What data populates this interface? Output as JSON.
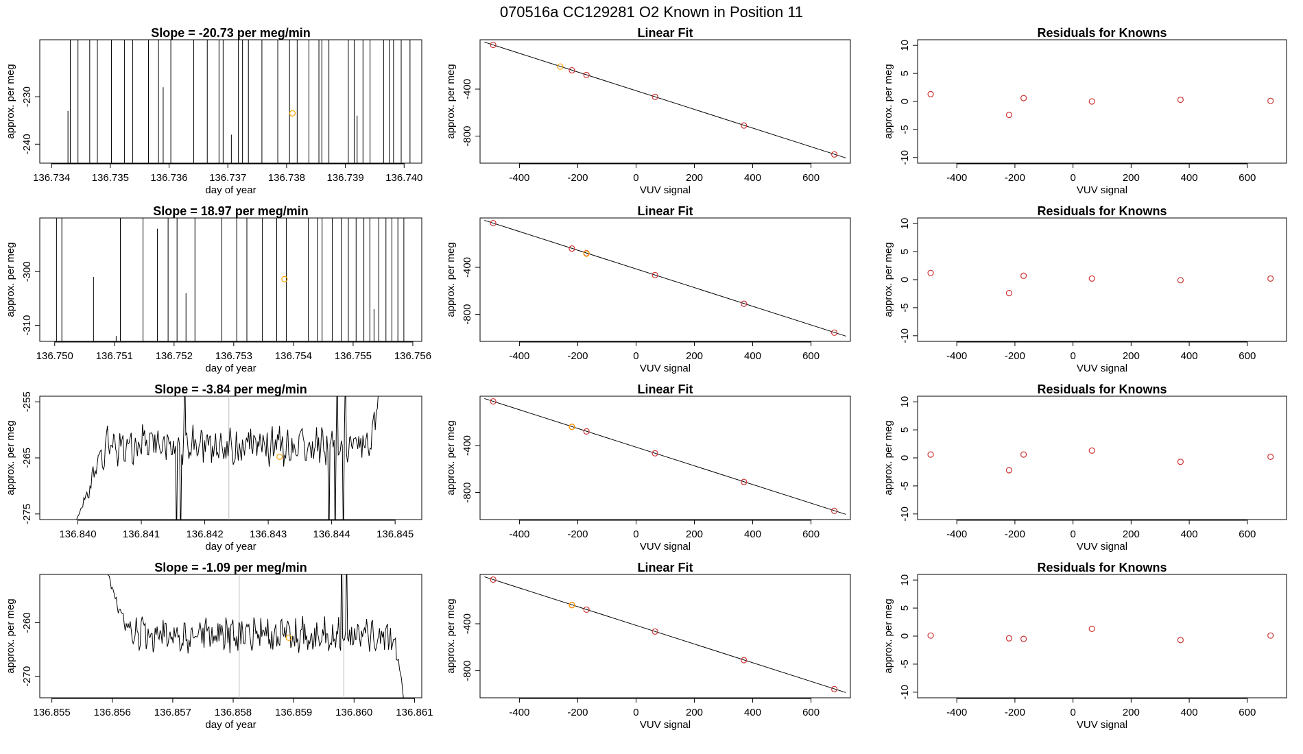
{
  "figure": {
    "title": "070516a      CC129281    O2 Known in Position  11"
  },
  "chart_data": [
    {
      "type": "line",
      "row": 1,
      "title": "Slope =  -20.73  per meg/min",
      "xlabel": "day of year",
      "ylabel": "approx. per meg",
      "xlim": [
        136.7338,
        136.7403
      ],
      "ylim": [
        -244,
        -218
      ],
      "xticks": [
        136.734,
        136.735,
        136.736,
        136.737,
        136.738,
        136.739,
        136.74
      ],
      "xtick_labels": [
        "136.734",
        "136.735",
        "136.736",
        "136.737",
        "136.738",
        "136.739",
        "136.740"
      ],
      "yticks": [
        -240,
        -230
      ],
      "ytick_labels": [
        "-240",
        "-230"
      ],
      "series": [
        {
          "name": "signal",
          "color": "#000000",
          "trace": "spike",
          "start": [
            136.73432,
            -244
          ],
          "spikes": [
            136.73432,
            136.73445,
            136.73465,
            136.73478,
            136.73502,
            136.73524,
            136.73538,
            136.73565,
            136.73582,
            136.73603,
            136.73642,
            136.73665,
            136.73685,
            136.73692,
            136.73718,
            136.73725,
            136.73735,
            136.73758,
            136.73785,
            136.73805,
            136.73818,
            136.73838,
            136.73855,
            136.7386,
            136.73872,
            136.73905,
            136.73915,
            136.7393,
            136.73942,
            136.73965,
            136.73975,
            136.73982,
            136.73995,
            136.7401
          ],
          "partial": [
            {
              "x": 136.73428,
              "y": -233
            },
            {
              "x": 136.7359,
              "y": -228
            },
            {
              "x": 136.73706,
              "y": -238
            },
            {
              "x": 136.7392,
              "y": -234
            }
          ]
        }
      ],
      "marker": {
        "x": 136.7381,
        "y": -233.5,
        "color": "#FFA500"
      }
    },
    {
      "type": "scatter",
      "row": 1,
      "title": "Linear Fit",
      "xlabel": "VUV signal",
      "ylabel": "approx. per meg",
      "xlim": [
        -535,
        735
      ],
      "ylim": [
        -1030,
        20
      ],
      "xticks": [
        -400,
        -200,
        0,
        200,
        400,
        600
      ],
      "xtick_labels": [
        "-400",
        "-200",
        "0",
        "200",
        "400",
        "600"
      ],
      "yticks": [
        -800,
        -400
      ],
      "ytick_labels": [
        "-800",
        "-400"
      ],
      "fit_line": {
        "x": [
          -520,
          720
        ],
        "y": [
          0,
          -986
        ]
      },
      "points": {
        "x": [
          -490,
          -220,
          -170,
          65,
          370,
          680
        ],
        "y": [
          -24,
          -240,
          -280,
          -466,
          -710,
          -956
        ],
        "color": "#CD3333"
      },
      "highlight": {
        "x": -260,
        "y": -208,
        "color": "#FFA500"
      }
    },
    {
      "type": "scatter",
      "row": 1,
      "title": "Residuals for Knowns",
      "xlabel": "VUV signal",
      "ylabel": "approx. per meg",
      "xlim": [
        -535,
        735
      ],
      "ylim": [
        -11,
        11
      ],
      "xticks": [
        -400,
        -200,
        0,
        200,
        400,
        600
      ],
      "xtick_labels": [
        "-400",
        "-200",
        "0",
        "200",
        "400",
        "600"
      ],
      "yticks": [
        -10,
        -5,
        0,
        5,
        10
      ],
      "ytick_labels": [
        "-10",
        "-5",
        "0",
        "5",
        "10"
      ],
      "points": {
        "x": [
          -490,
          -220,
          -170,
          65,
          370,
          680
        ],
        "y": [
          1.3,
          -2.4,
          0.6,
          0.0,
          0.3,
          0.1
        ],
        "color": "#CD3333"
      }
    },
    {
      "type": "line",
      "row": 2,
      "title": "Slope =  18.97  per meg/min",
      "xlabel": "day of year",
      "ylabel": "approx. per meg",
      "xlim": [
        136.74975,
        136.75615
      ],
      "ylim": [
        -313,
        -290
      ],
      "xticks": [
        136.75,
        136.751,
        136.752,
        136.753,
        136.754,
        136.755,
        136.756
      ],
      "xtick_labels": [
        "136.750",
        "136.751",
        "136.752",
        "136.753",
        "136.754",
        "136.755",
        "136.756"
      ],
      "yticks": [
        -310,
        -300
      ],
      "ytick_labels": [
        "-310",
        "-300"
      ],
      "series": [
        {
          "name": "signal",
          "color": "#000000",
          "trace": "spike",
          "start": [
            136.75003,
            -313
          ],
          "spikes": [
            136.75003,
            136.75012,
            136.7511,
            136.75148,
            136.7519,
            136.75205,
            136.75235,
            136.7528,
            136.75305,
            136.75322,
            136.75348,
            136.75372,
            136.75388,
            136.75425,
            136.7544,
            136.75448,
            136.75465,
            136.7548,
            136.75492,
            136.75505,
            136.75518,
            136.75528,
            136.75543,
            136.75555,
            136.75565,
            136.75575,
            136.75585
          ],
          "partial": [
            {
              "x": 136.75065,
              "y": -301
            },
            {
              "x": 136.75103,
              "y": -312
            },
            {
              "x": 136.75172,
              "y": -292
            },
            {
              "x": 136.7522,
              "y": -304
            },
            {
              "x": 136.75535,
              "y": -307
            }
          ]
        }
      ],
      "marker": {
        "x": 136.75385,
        "y": -301.4,
        "color": "#FFA500"
      }
    },
    {
      "type": "scatter",
      "row": 2,
      "title": "Linear Fit",
      "xlabel": "VUV signal",
      "ylabel": "approx. per meg",
      "xlim": [
        -535,
        735
      ],
      "ylim": [
        -1030,
        20
      ],
      "xticks": [
        -400,
        -200,
        0,
        200,
        400,
        600
      ],
      "xtick_labels": [
        "-400",
        "-200",
        "0",
        "200",
        "400",
        "600"
      ],
      "yticks": [
        -800,
        -400
      ],
      "ytick_labels": [
        "-800",
        "-400"
      ],
      "fit_line": {
        "x": [
          -520,
          720
        ],
        "y": [
          0,
          -986
        ]
      },
      "points": {
        "x": [
          -490,
          -220,
          -170,
          65,
          370,
          680
        ],
        "y": [
          -24,
          -240,
          -280,
          -466,
          -710,
          -956
        ],
        "color": "#CD3333"
      },
      "highlight": {
        "x": -170,
        "y": -284,
        "color": "#FFA500"
      }
    },
    {
      "type": "scatter",
      "row": 2,
      "title": "Residuals for Knowns",
      "xlabel": "VUV signal",
      "ylabel": "approx. per meg",
      "xlim": [
        -535,
        735
      ],
      "ylim": [
        -11,
        11
      ],
      "xticks": [
        -400,
        -200,
        0,
        200,
        400,
        600
      ],
      "xtick_labels": [
        "-400",
        "-200",
        "0",
        "200",
        "400",
        "600"
      ],
      "yticks": [
        -10,
        -5,
        0,
        5,
        10
      ],
      "ytick_labels": [
        "-10",
        "-5",
        "0",
        "5",
        "10"
      ],
      "points": {
        "x": [
          -490,
          -220,
          -170,
          65,
          370,
          680
        ],
        "y": [
          1.2,
          -2.4,
          0.7,
          0.2,
          -0.1,
          0.2
        ],
        "color": "#CD3333"
      }
    },
    {
      "type": "line",
      "row": 3,
      "title": "Slope =  -3.84  per meg/min",
      "xlabel": "day of year",
      "ylabel": "approx. per meg",
      "xlim": [
        136.8394,
        136.84542
      ],
      "ylim": [
        -276,
        -254
      ],
      "xticks": [
        136.84,
        136.841,
        136.842,
        136.843,
        136.844,
        136.845
      ],
      "xtick_labels": [
        "136.840",
        "136.841",
        "136.842",
        "136.843",
        "136.844",
        "136.845"
      ],
      "yticks": [
        -275,
        -265,
        -255
      ],
      "ytick_labels": [
        "-275",
        "-265",
        "-255"
      ],
      "series": [
        {
          "name": "signal",
          "color": "#000000",
          "trace": "noisy",
          "x_start": 136.83998,
          "x_end": 136.84485,
          "n_points": 300,
          "baseline": -262.8,
          "noise_amplitude": 1.8,
          "ramp": {
            "start_value": -276,
            "end_x": 136.84045
          },
          "tail_rise": {
            "start_x": 136.84462,
            "end_value": -246
          },
          "spikes_down": [
            136.84155,
            136.84162,
            136.84395,
            136.84405,
            136.84418
          ],
          "spikes_up": [
            136.84168,
            136.84408,
            136.84422
          ]
        }
      ],
      "gray_lines": [
        136.84238
      ],
      "marker": {
        "x": 136.84318,
        "y": -264.8,
        "color": "#FFA500"
      }
    },
    {
      "type": "scatter",
      "row": 3,
      "title": "Linear Fit",
      "xlabel": "VUV signal",
      "ylabel": "approx. per meg",
      "xlim": [
        -535,
        735
      ],
      "ylim": [
        -1030,
        20
      ],
      "xticks": [
        -400,
        -200,
        0,
        200,
        400,
        600
      ],
      "xtick_labels": [
        "-400",
        "-200",
        "0",
        "200",
        "400",
        "600"
      ],
      "yticks": [
        -800,
        -400
      ],
      "ytick_labels": [
        "-800",
        "-400"
      ],
      "fit_line": {
        "x": [
          -520,
          720
        ],
        "y": [
          0,
          -986
        ]
      },
      "points": {
        "x": [
          -490,
          -220,
          -170,
          65,
          370,
          680
        ],
        "y": [
          -24,
          -240,
          -280,
          -466,
          -710,
          -956
        ],
        "color": "#CD3333"
      },
      "highlight": {
        "x": -220,
        "y": -242,
        "color": "#FFA500"
      }
    },
    {
      "type": "scatter",
      "row": 3,
      "title": "Residuals for Knowns",
      "xlabel": "VUV signal",
      "ylabel": "approx. per meg",
      "xlim": [
        -535,
        735
      ],
      "ylim": [
        -11,
        11
      ],
      "xticks": [
        -400,
        -200,
        0,
        200,
        400,
        600
      ],
      "xtick_labels": [
        "-400",
        "-200",
        "0",
        "200",
        "400",
        "600"
      ],
      "yticks": [
        -10,
        -5,
        0,
        5,
        10
      ],
      "ytick_labels": [
        "-10",
        "-5",
        "0",
        "5",
        "10"
      ],
      "points": {
        "x": [
          -490,
          -220,
          -170,
          65,
          370,
          680
        ],
        "y": [
          0.6,
          -2.2,
          0.6,
          1.3,
          -0.7,
          0.2
        ],
        "color": "#CD3333"
      }
    },
    {
      "type": "line",
      "row": 4,
      "title": "Slope =  -1.09  per meg/min",
      "xlabel": "day of year",
      "ylabel": "approx. per meg",
      "xlim": [
        136.8548,
        136.86112
      ],
      "ylim": [
        -274,
        -251
      ],
      "xticks": [
        136.855,
        136.856,
        136.857,
        136.858,
        136.859,
        136.86,
        136.861
      ],
      "xtick_labels": [
        "136.855",
        "136.856",
        "136.857",
        "136.858",
        "136.859",
        "136.860",
        "136.861"
      ],
      "yticks": [
        -270,
        -260
      ],
      "ytick_labels": [
        "-270",
        "-260"
      ],
      "series": [
        {
          "name": "signal",
          "color": "#000000",
          "trace": "noisy",
          "x_start": 136.8559,
          "x_end": 136.86085,
          "n_points": 300,
          "baseline": -262.3,
          "noise_amplitude": 1.7,
          "ramp": {
            "start_value": -250,
            "end_x": 136.85625
          },
          "tail_drop": {
            "start_x": 136.86065,
            "end_value": -276
          },
          "spikes_down": [],
          "spikes_up": [
            136.8598,
            136.85988
          ]
        }
      ],
      "gray_lines": [
        136.8581,
        136.85983
      ],
      "marker": {
        "x": 136.85892,
        "y": -262.8,
        "color": "#FFA500"
      }
    },
    {
      "type": "scatter",
      "row": 4,
      "title": "Linear Fit",
      "xlabel": "VUV signal",
      "ylabel": "approx. per meg",
      "xlim": [
        -535,
        735
      ],
      "ylim": [
        -1030,
        20
      ],
      "xticks": [
        -400,
        -200,
        0,
        200,
        400,
        600
      ],
      "xtick_labels": [
        "-400",
        "-200",
        "0",
        "200",
        "400",
        "600"
      ],
      "yticks": [
        -800,
        -400
      ],
      "ytick_labels": [
        "-800",
        "-400"
      ],
      "fit_line": {
        "x": [
          -520,
          720
        ],
        "y": [
          0,
          -986
        ]
      },
      "points": {
        "x": [
          -490,
          -220,
          -170,
          65,
          370,
          680
        ],
        "y": [
          -24,
          -240,
          -280,
          -466,
          -710,
          -956
        ],
        "color": "#CD3333"
      },
      "highlight": {
        "x": -220,
        "y": -242,
        "color": "#FFA500"
      }
    },
    {
      "type": "scatter",
      "row": 4,
      "title": "Residuals for Knowns",
      "xlabel": "VUV signal",
      "ylabel": "approx. per meg",
      "xlim": [
        -535,
        735
      ],
      "ylim": [
        -11,
        11
      ],
      "xticks": [
        -400,
        -200,
        0,
        200,
        400,
        600
      ],
      "xtick_labels": [
        "-400",
        "-200",
        "0",
        "200",
        "400",
        "600"
      ],
      "yticks": [
        -10,
        -5,
        0,
        5,
        10
      ],
      "ytick_labels": [
        "-10",
        "-5",
        "0",
        "5",
        "10"
      ],
      "points": {
        "x": [
          -490,
          -220,
          -170,
          65,
          370,
          680
        ],
        "y": [
          0.1,
          -0.4,
          -0.5,
          1.3,
          -0.7,
          0.1
        ],
        "color": "#CD3333"
      }
    }
  ]
}
